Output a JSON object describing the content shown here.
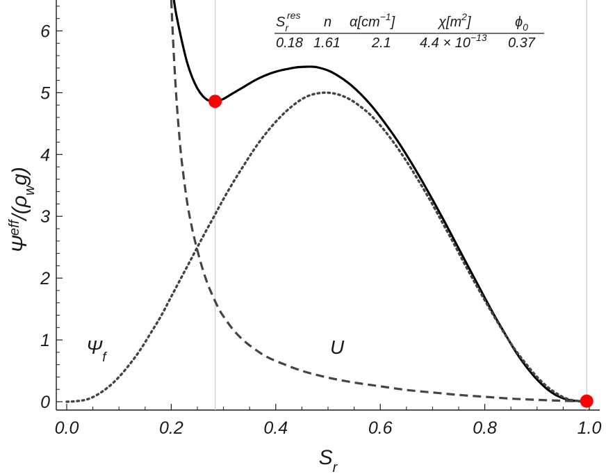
{
  "chart_data": {
    "type": "line",
    "title": "",
    "xlabel": "S_r",
    "ylabel": "Ψ^eff/(ρ_w g)",
    "xlim": [
      0.0,
      1.0
    ],
    "ylim": [
      0.0,
      6.5
    ],
    "x_ticks": [
      0.0,
      0.2,
      0.4,
      0.6,
      0.8,
      1.0
    ],
    "x_tick_labels": [
      "0.0",
      "0.2",
      "0.4",
      "0.6",
      "0.8",
      "1.0"
    ],
    "y_ticks": [
      0,
      1,
      2,
      3,
      4,
      5,
      6
    ],
    "y_tick_labels": [
      "0",
      "1",
      "2",
      "3",
      "4",
      "5",
      "6"
    ],
    "grid": false,
    "series": [
      {
        "name": "",
        "style": "solid",
        "color": "#000000",
        "x": [
          0.205,
          0.21,
          0.22,
          0.23,
          0.24,
          0.25,
          0.26,
          0.27,
          0.28,
          0.285,
          0.29,
          0.3,
          0.32,
          0.34,
          0.36,
          0.38,
          0.4,
          0.42,
          0.44,
          0.46,
          0.47,
          0.48,
          0.5,
          0.52,
          0.54,
          0.56,
          0.58,
          0.6,
          0.62,
          0.64,
          0.66,
          0.68,
          0.7,
          0.72,
          0.74,
          0.76,
          0.78,
          0.8,
          0.82,
          0.84,
          0.86,
          0.88,
          0.9,
          0.92,
          0.94,
          0.96,
          0.98,
          1.0
        ],
        "y": [
          6.5,
          6.25,
          5.85,
          5.5,
          5.25,
          5.07,
          4.95,
          4.88,
          4.86,
          4.86,
          4.87,
          4.9,
          5.0,
          5.1,
          5.2,
          5.28,
          5.34,
          5.38,
          5.41,
          5.42,
          5.42,
          5.41,
          5.36,
          5.27,
          5.15,
          5.0,
          4.82,
          4.61,
          4.38,
          4.13,
          3.86,
          3.57,
          3.27,
          2.96,
          2.64,
          2.32,
          2.0,
          1.68,
          1.37,
          1.08,
          0.8,
          0.56,
          0.36,
          0.2,
          0.09,
          0.03,
          0.01,
          0.0
        ]
      },
      {
        "name": "Ψ_f",
        "style": "dashed",
        "color": "#444444",
        "x": [
          0.2,
          0.205,
          0.21,
          0.215,
          0.22,
          0.23,
          0.24,
          0.25,
          0.26,
          0.27,
          0.28,
          0.29,
          0.3,
          0.32,
          0.34,
          0.36,
          0.38,
          0.4,
          0.45,
          0.5,
          0.55,
          0.6,
          0.65,
          0.7,
          0.75,
          0.8,
          0.85,
          0.9,
          0.95,
          1.0
        ],
        "y": [
          6.5,
          5.6,
          4.9,
          4.35,
          3.9,
          3.25,
          2.8,
          2.45,
          2.15,
          1.9,
          1.7,
          1.52,
          1.38,
          1.15,
          0.98,
          0.85,
          0.74,
          0.66,
          0.5,
          0.39,
          0.31,
          0.25,
          0.19,
          0.15,
          0.11,
          0.08,
          0.05,
          0.03,
          0.015,
          0.0
        ]
      },
      {
        "name": "U",
        "style": "dotted",
        "color": "#444444",
        "x": [
          0.0,
          0.02,
          0.04,
          0.06,
          0.08,
          0.1,
          0.12,
          0.14,
          0.16,
          0.18,
          0.2,
          0.22,
          0.24,
          0.26,
          0.28,
          0.3,
          0.32,
          0.34,
          0.36,
          0.38,
          0.4,
          0.42,
          0.44,
          0.46,
          0.48,
          0.5,
          0.52,
          0.54,
          0.56,
          0.58,
          0.6,
          0.62,
          0.64,
          0.66,
          0.68,
          0.7,
          0.72,
          0.74,
          0.76,
          0.78,
          0.8,
          0.82,
          0.84,
          0.86,
          0.88,
          0.9,
          0.92,
          0.94,
          0.96,
          0.98,
          1.0
        ],
        "y": [
          0.0,
          0.01,
          0.04,
          0.12,
          0.24,
          0.4,
          0.6,
          0.83,
          1.1,
          1.38,
          1.7,
          2.02,
          2.34,
          2.66,
          2.97,
          3.28,
          3.57,
          3.84,
          4.1,
          4.33,
          4.53,
          4.7,
          4.84,
          4.94,
          4.99,
          5.0,
          4.97,
          4.9,
          4.79,
          4.65,
          4.47,
          4.26,
          4.02,
          3.76,
          3.48,
          3.19,
          2.88,
          2.57,
          2.25,
          1.94,
          1.64,
          1.35,
          1.07,
          0.82,
          0.6,
          0.4,
          0.24,
          0.12,
          0.04,
          0.01,
          0.0
        ]
      }
    ],
    "vertical_lines": [
      0.284,
      0.995
    ],
    "markers": [
      {
        "x": 0.284,
        "y": 4.86,
        "color": "#ff0000"
      },
      {
        "x": 0.995,
        "y": 0.01,
        "color": "#ff0000"
      }
    ],
    "annotations": {
      "psi_label": "Ψ_f",
      "u_label": "U"
    },
    "parameter_table": {
      "headers": [
        "S_r^res",
        "n",
        "α[cm^-1]",
        "χ[m^2]",
        "ϕ_0"
      ],
      "values": [
        "0.18",
        "1.61",
        "2.1",
        "4.4 × 10^-13",
        "0.37"
      ]
    }
  },
  "text": {
    "ylabel_main": "Ψ",
    "ylabel_sup": "eff",
    "ylabel_rest": "/(ρ",
    "ylabel_sub": "w",
    "ylabel_end": "g)",
    "xlabel_main": "S",
    "xlabel_sub": "r",
    "psi_main": "Ψ",
    "psi_sub": "f",
    "u_label": "U",
    "h1_main": "S",
    "h1_sub": "r",
    "h1_sup": "res",
    "h2": "n",
    "h3_main": "α[cm",
    "h3_sup": "−1",
    "h3_end": "]",
    "h4_main": "χ[m",
    "h4_sup": "2",
    "h4_end": "]",
    "h5_main": "ϕ",
    "h5_sub": "0",
    "v1": "0.18",
    "v2": "1.61",
    "v3": "2.1",
    "v4_main": "4.4 × 10",
    "v4_sup": "−13",
    "v5": "0.37"
  }
}
